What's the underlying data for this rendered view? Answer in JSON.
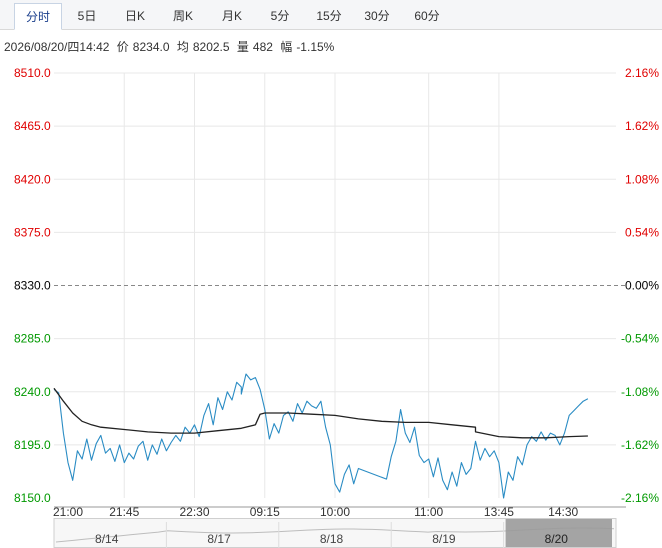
{
  "tabs": [
    {
      "label": "分时",
      "active": true
    },
    {
      "label": "5日"
    },
    {
      "label": "日K"
    },
    {
      "label": "周K"
    },
    {
      "label": "月K"
    },
    {
      "label": "5分"
    },
    {
      "label": "15分"
    },
    {
      "label": "30分"
    },
    {
      "label": "60分"
    }
  ],
  "info": {
    "datetime": "2026/08/20/四14:42",
    "price_label": "价",
    "price": "8234.0",
    "avg_label": "均",
    "avg": "8202.5",
    "volume_label": "量",
    "volume": "482",
    "change_label": "幅",
    "change": "-1.15%"
  },
  "colors": {
    "up": "#e00000",
    "down": "#009900",
    "neutral": "#000000",
    "price_line": "#2a8cc4",
    "avg_line": "#222222",
    "grid": "#e8e8e8",
    "navigator_mask": "#9a9a9a"
  },
  "chart_data": {
    "type": "line",
    "title": "",
    "xlabel": "",
    "ylabel": "",
    "baseline": 8330.0,
    "ylim": [
      8150.0,
      8510.0
    ],
    "y_ticks_left": [
      "8510.0",
      "8465.0",
      "8420.0",
      "8375.0",
      "8330.0",
      "8285.0",
      "8240.0",
      "8195.0",
      "8150.0"
    ],
    "y_ticks_right": [
      "2.16%",
      "1.62%",
      "1.08%",
      "0.54%",
      "0.00%",
      "-0.54%",
      "-1.08%",
      "-1.62%",
      "-2.16%"
    ],
    "x_ticks": [
      "21:00",
      "21:45",
      "22:30",
      "09:15",
      "10:00",
      "11:00",
      "13:45",
      "14:30"
    ],
    "grid": true,
    "series": [
      {
        "type": "price",
        "points": [
          [
            "21:00",
            8242
          ],
          [
            "21:03",
            8239
          ],
          [
            "21:06",
            8205
          ],
          [
            "21:09",
            8180
          ],
          [
            "21:12",
            8165
          ],
          [
            "21:15",
            8190
          ],
          [
            "21:18",
            8183
          ],
          [
            "21:21",
            8200
          ],
          [
            "21:24",
            8182
          ],
          [
            "21:27",
            8196
          ],
          [
            "21:30",
            8203
          ],
          [
            "21:33",
            8188
          ],
          [
            "21:36",
            8192
          ],
          [
            "21:39",
            8181
          ],
          [
            "21:42",
            8195
          ],
          [
            "21:45",
            8180
          ],
          [
            "21:48",
            8188
          ],
          [
            "21:51",
            8183
          ],
          [
            "21:54",
            8194
          ],
          [
            "21:57",
            8198
          ],
          [
            "22:00",
            8182
          ],
          [
            "22:03",
            8195
          ],
          [
            "22:06",
            8187
          ],
          [
            "22:09",
            8200
          ],
          [
            "22:12",
            8190
          ],
          [
            "22:15",
            8197
          ],
          [
            "22:18",
            8203
          ],
          [
            "22:21",
            8198
          ],
          [
            "22:24",
            8210
          ],
          [
            "22:27",
            8205
          ],
          [
            "22:30",
            8212
          ],
          [
            "22:33",
            8202
          ],
          [
            "22:36",
            8220
          ],
          [
            "22:39",
            8230
          ],
          [
            "22:42",
            8212
          ],
          [
            "22:45",
            8235
          ],
          [
            "22:48",
            8225
          ],
          [
            "22:51",
            8240
          ],
          [
            "22:54",
            8233
          ],
          [
            "22:57",
            8248
          ],
          [
            "23:00",
            8244
          ],
          [
            "09:00",
            8238
          ],
          [
            "09:03",
            8255
          ],
          [
            "09:06",
            8250
          ],
          [
            "09:09",
            8252
          ],
          [
            "09:12",
            8242
          ],
          [
            "09:15",
            8225
          ],
          [
            "09:18",
            8200
          ],
          [
            "09:21",
            8213
          ],
          [
            "09:24",
            8205
          ],
          [
            "09:27",
            8220
          ],
          [
            "09:30",
            8223
          ],
          [
            "09:33",
            8215
          ],
          [
            "09:36",
            8230
          ],
          [
            "09:39",
            8222
          ],
          [
            "09:42",
            8232
          ],
          [
            "09:45",
            8228
          ],
          [
            "09:48",
            8226
          ],
          [
            "09:51",
            8232
          ],
          [
            "09:54",
            8210
          ],
          [
            "09:57",
            8195
          ],
          [
            "10:00",
            8162
          ],
          [
            "10:03",
            8155
          ],
          [
            "10:06",
            8170
          ],
          [
            "10:09",
            8178
          ],
          [
            "10:12",
            8162
          ],
          [
            "10:15",
            8175
          ],
          [
            "10:33",
            8166
          ],
          [
            "10:36",
            8185
          ],
          [
            "10:39",
            8198
          ],
          [
            "10:42",
            8225
          ],
          [
            "10:45",
            8205
          ],
          [
            "10:48",
            8197
          ],
          [
            "10:51",
            8210
          ],
          [
            "10:54",
            8186
          ],
          [
            "10:57",
            8180
          ],
          [
            "11:00",
            8183
          ],
          [
            "11:03",
            8168
          ],
          [
            "11:06",
            8184
          ],
          [
            "11:09",
            8165
          ],
          [
            "11:12",
            8157
          ],
          [
            "11:15",
            8172
          ],
          [
            "11:18",
            8160
          ],
          [
            "11:21",
            8180
          ],
          [
            "11:24",
            8170
          ],
          [
            "11:27",
            8175
          ],
          [
            "13:30",
            8198
          ],
          [
            "13:33",
            8182
          ],
          [
            "13:36",
            8192
          ],
          [
            "13:39",
            8185
          ],
          [
            "13:42",
            8190
          ],
          [
            "13:45",
            8180
          ],
          [
            "13:48",
            8150
          ],
          [
            "13:51",
            8172
          ],
          [
            "13:54",
            8165
          ],
          [
            "13:57",
            8185
          ],
          [
            "14:00",
            8178
          ],
          [
            "14:03",
            8195
          ],
          [
            "14:06",
            8202
          ],
          [
            "14:09",
            8198
          ],
          [
            "14:12",
            8206
          ],
          [
            "14:15",
            8199
          ],
          [
            "14:18",
            8205
          ],
          [
            "14:21",
            8203
          ],
          [
            "14:24",
            8195
          ],
          [
            "14:27",
            8205
          ],
          [
            "14:30",
            8220
          ],
          [
            "14:33",
            8224
          ],
          [
            "14:36",
            8228
          ],
          [
            "14:39",
            8232
          ],
          [
            "14:42",
            8234
          ]
        ]
      },
      {
        "type": "average",
        "points": [
          [
            "21:00",
            8243
          ],
          [
            "21:06",
            8232
          ],
          [
            "21:12",
            8222
          ],
          [
            "21:18",
            8215
          ],
          [
            "21:24",
            8212
          ],
          [
            "21:30",
            8210
          ],
          [
            "21:45",
            8208
          ],
          [
            "22:00",
            8206
          ],
          [
            "22:15",
            8205
          ],
          [
            "22:30",
            8205
          ],
          [
            "22:45",
            8207
          ],
          [
            "23:00",
            8209
          ],
          [
            "09:09",
            8212
          ],
          [
            "09:12",
            8221
          ],
          [
            "09:15",
            8222
          ],
          [
            "09:30",
            8222
          ],
          [
            "09:45",
            8221
          ],
          [
            "10:00",
            8220
          ],
          [
            "10:15",
            8217
          ],
          [
            "10:30",
            8215
          ],
          [
            "10:45",
            8214
          ],
          [
            "11:00",
            8214
          ],
          [
            "11:15",
            8212
          ],
          [
            "11:30",
            8210
          ],
          [
            "13:30",
            8206
          ],
          [
            "13:45",
            8202
          ],
          [
            "14:00",
            8201
          ],
          [
            "14:15",
            8201
          ],
          [
            "14:30",
            8202
          ],
          [
            "14:42",
            8202.5
          ]
        ]
      }
    ],
    "navigator": {
      "dates": [
        "8/14",
        "8/17",
        "8/18",
        "8/19",
        "8/20"
      ],
      "selected": "8/20"
    }
  }
}
